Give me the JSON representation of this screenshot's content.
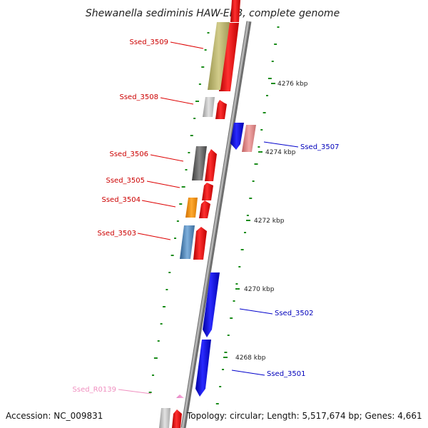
{
  "title": "Shewanella sediminis HAW-EB3, complete genome",
  "footer": {
    "accession": "Accession: NC_009831",
    "topology": "Topology: circular; Length: 5,517,674 bp; Genes: 4,661"
  },
  "colors": {
    "forward_cds": "#ff0000",
    "reverse_cds": "#0000ff",
    "backbone": "#999999",
    "gc_ticks": "#1a8c1a"
  },
  "scale_labels": [
    "4276 kbp",
    "4274 kbp",
    "4272 kbp",
    "4270 kbp",
    "4268 kbp"
  ],
  "genes": [
    {
      "name": "Ssed_3509",
      "strand": "forward"
    },
    {
      "name": "Ssed_3508",
      "strand": "forward"
    },
    {
      "name": "Ssed_3507",
      "strand": "reverse"
    },
    {
      "name": "Ssed_3506",
      "strand": "forward"
    },
    {
      "name": "Ssed_3505",
      "strand": "forward"
    },
    {
      "name": "Ssed_3504",
      "strand": "forward"
    },
    {
      "name": "Ssed_3503",
      "strand": "forward"
    },
    {
      "name": "Ssed_3502",
      "strand": "reverse"
    },
    {
      "name": "Ssed_3501",
      "strand": "reverse"
    },
    {
      "name": "Ssed_R0139",
      "strand": "forward"
    }
  ]
}
